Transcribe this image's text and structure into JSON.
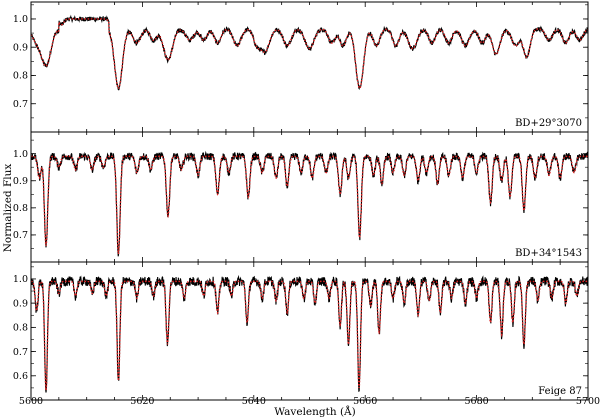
{
  "chart_data": {
    "type": "line",
    "xlabel": "Wavelength (Å)",
    "ylabel": "Normalized Flux",
    "xlim": [
      5600,
      5700
    ],
    "x_ticks": [
      5600,
      5620,
      5640,
      5660,
      5680,
      5700
    ],
    "series_style": {
      "observed": {
        "color": "#000000",
        "style": "solid"
      },
      "model": {
        "color": "#dd2222",
        "style": "dotted"
      }
    },
    "panels": [
      {
        "label": "BD+29°3070",
        "ylim": [
          0.6,
          1.06
        ],
        "y_ticks": [
          0.7,
          0.8,
          0.9,
          1.0
        ],
        "continuum": 0.965,
        "noise": 0.008,
        "plateau": [
          5605,
          5614,
          1.0
        ],
        "lines": [
          [
            5601.2,
            0.05,
            0.9
          ],
          [
            5602.8,
            0.12,
            0.8
          ],
          [
            5605.5,
            0.02,
            0.4
          ],
          [
            5615.7,
            0.21,
            0.7
          ],
          [
            5619.0,
            0.05,
            0.7
          ],
          [
            5622.0,
            0.04,
            0.6
          ],
          [
            5624.6,
            0.11,
            0.8
          ],
          [
            5628.5,
            0.04,
            0.7
          ],
          [
            5631.0,
            0.04,
            0.6
          ],
          [
            5633.5,
            0.05,
            0.6
          ],
          [
            5637.0,
            0.06,
            0.7
          ],
          [
            5640.5,
            0.05,
            0.6
          ],
          [
            5642.0,
            0.08,
            0.8
          ],
          [
            5646.0,
            0.06,
            0.7
          ],
          [
            5650.0,
            0.07,
            0.8
          ],
          [
            5654.0,
            0.05,
            0.6
          ],
          [
            5656.0,
            0.06,
            0.6
          ],
          [
            5659.0,
            0.21,
            0.7
          ],
          [
            5662.0,
            0.06,
            0.6
          ],
          [
            5665.5,
            0.06,
            0.6
          ],
          [
            5668.5,
            0.07,
            0.8
          ],
          [
            5672.0,
            0.05,
            0.6
          ],
          [
            5675.0,
            0.05,
            0.6
          ],
          [
            5678.0,
            0.06,
            0.7
          ],
          [
            5681.0,
            0.05,
            0.6
          ],
          [
            5683.5,
            0.09,
            0.7
          ],
          [
            5687.0,
            0.06,
            0.7
          ],
          [
            5689.0,
            0.1,
            0.6
          ],
          [
            5693.0,
            0.04,
            0.6
          ],
          [
            5696.0,
            0.05,
            0.6
          ],
          [
            5698.5,
            0.04,
            0.6
          ]
        ]
      },
      {
        "label": "BD+34°1543",
        "ylim": [
          0.6,
          1.08
        ],
        "y_ticks": [
          0.7,
          0.8,
          0.9,
          1.0
        ],
        "continuum": 0.99,
        "noise": 0.014,
        "lines": [
          [
            5601.5,
            0.08,
            0.3
          ],
          [
            5602.7,
            0.33,
            0.3
          ],
          [
            5605.0,
            0.04,
            0.3
          ],
          [
            5608.0,
            0.05,
            0.3
          ],
          [
            5611.0,
            0.05,
            0.3
          ],
          [
            5613.0,
            0.04,
            0.3
          ],
          [
            5615.7,
            0.36,
            0.3
          ],
          [
            5619.0,
            0.06,
            0.3
          ],
          [
            5621.5,
            0.05,
            0.3
          ],
          [
            5624.6,
            0.22,
            0.3
          ],
          [
            5627.0,
            0.05,
            0.3
          ],
          [
            5630.0,
            0.07,
            0.3
          ],
          [
            5633.5,
            0.14,
            0.3
          ],
          [
            5635.5,
            0.06,
            0.3
          ],
          [
            5639.0,
            0.15,
            0.3
          ],
          [
            5641.5,
            0.06,
            0.3
          ],
          [
            5644.0,
            0.08,
            0.3
          ],
          [
            5646.0,
            0.11,
            0.3
          ],
          [
            5648.5,
            0.06,
            0.3
          ],
          [
            5650.5,
            0.08,
            0.3
          ],
          [
            5653.0,
            0.06,
            0.3
          ],
          [
            5655.5,
            0.14,
            0.3
          ],
          [
            5657.0,
            0.08,
            0.3
          ],
          [
            5659.0,
            0.3,
            0.3
          ],
          [
            5661.5,
            0.07,
            0.3
          ],
          [
            5663.0,
            0.1,
            0.3
          ],
          [
            5665.0,
            0.06,
            0.3
          ],
          [
            5667.0,
            0.07,
            0.3
          ],
          [
            5669.5,
            0.09,
            0.3
          ],
          [
            5671.0,
            0.06,
            0.3
          ],
          [
            5673.0,
            0.1,
            0.3
          ],
          [
            5675.0,
            0.07,
            0.3
          ],
          [
            5677.5,
            0.08,
            0.3
          ],
          [
            5680.0,
            0.06,
            0.3
          ],
          [
            5682.5,
            0.17,
            0.3
          ],
          [
            5684.5,
            0.09,
            0.3
          ],
          [
            5686.0,
            0.15,
            0.3
          ],
          [
            5688.5,
            0.2,
            0.3
          ],
          [
            5690.5,
            0.08,
            0.3
          ],
          [
            5693.0,
            0.07,
            0.3
          ],
          [
            5695.0,
            0.08,
            0.3
          ],
          [
            5697.5,
            0.06,
            0.3
          ]
        ]
      },
      {
        "label": "Feige 87",
        "ylim": [
          0.5,
          1.07
        ],
        "y_ticks": [
          0.6,
          0.7,
          0.8,
          0.9,
          1.0
        ],
        "continuum": 0.99,
        "noise": 0.02,
        "lines": [
          [
            5601.0,
            0.12,
            0.25
          ],
          [
            5602.7,
            0.45,
            0.25
          ],
          [
            5605.0,
            0.05,
            0.25
          ],
          [
            5608.0,
            0.06,
            0.25
          ],
          [
            5611.0,
            0.05,
            0.25
          ],
          [
            5613.5,
            0.06,
            0.25
          ],
          [
            5615.7,
            0.41,
            0.25
          ],
          [
            5619.0,
            0.07,
            0.25
          ],
          [
            5622.0,
            0.06,
            0.25
          ],
          [
            5624.5,
            0.26,
            0.25
          ],
          [
            5627.5,
            0.07,
            0.25
          ],
          [
            5631.0,
            0.06,
            0.25
          ],
          [
            5633.5,
            0.13,
            0.25
          ],
          [
            5636.0,
            0.06,
            0.25
          ],
          [
            5638.8,
            0.17,
            0.25
          ],
          [
            5641.5,
            0.07,
            0.25
          ],
          [
            5644.0,
            0.08,
            0.25
          ],
          [
            5646.0,
            0.13,
            0.25
          ],
          [
            5649.0,
            0.07,
            0.25
          ],
          [
            5651.0,
            0.09,
            0.25
          ],
          [
            5653.5,
            0.07,
            0.25
          ],
          [
            5655.5,
            0.18,
            0.25
          ],
          [
            5657.0,
            0.26,
            0.25
          ],
          [
            5658.9,
            0.44,
            0.25
          ],
          [
            5661.0,
            0.1,
            0.25
          ],
          [
            5662.5,
            0.21,
            0.25
          ],
          [
            5665.0,
            0.07,
            0.25
          ],
          [
            5667.0,
            0.09,
            0.25
          ],
          [
            5669.5,
            0.14,
            0.25
          ],
          [
            5671.5,
            0.08,
            0.25
          ],
          [
            5673.5,
            0.13,
            0.25
          ],
          [
            5675.5,
            0.07,
            0.25
          ],
          [
            5678.0,
            0.09,
            0.25
          ],
          [
            5680.0,
            0.07,
            0.25
          ],
          [
            5682.5,
            0.17,
            0.25
          ],
          [
            5684.5,
            0.22,
            0.25
          ],
          [
            5686.5,
            0.17,
            0.25
          ],
          [
            5688.5,
            0.26,
            0.25
          ],
          [
            5691.0,
            0.08,
            0.25
          ],
          [
            5693.5,
            0.07,
            0.25
          ],
          [
            5696.0,
            0.09,
            0.25
          ],
          [
            5698.0,
            0.06,
            0.25
          ]
        ]
      }
    ]
  }
}
